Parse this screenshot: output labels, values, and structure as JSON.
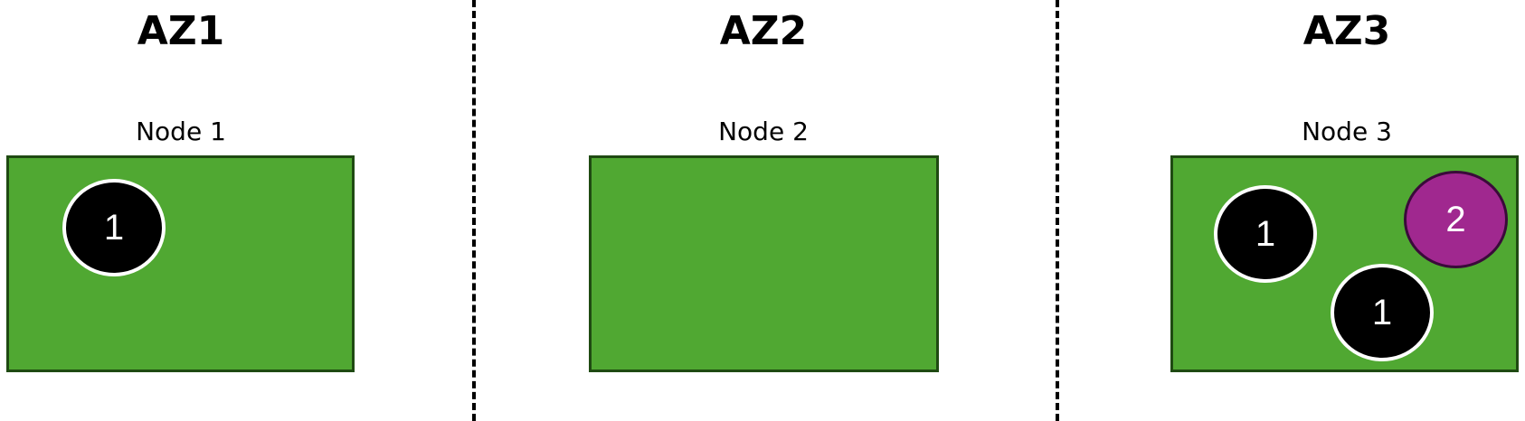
{
  "zones": [
    {
      "title": "AZ1",
      "node_label": "Node 1",
      "pods": [
        {
          "label": "1",
          "color": "#000000"
        }
      ]
    },
    {
      "title": "AZ2",
      "node_label": "Node 2",
      "pods": []
    },
    {
      "title": "AZ3",
      "node_label": "Node 3",
      "pods": [
        {
          "label": "1",
          "color": "#000000"
        },
        {
          "label": "2",
          "color": "#a0288f"
        },
        {
          "label": "1",
          "color": "#000000"
        }
      ]
    }
  ],
  "colors": {
    "node_fill": "#50a832",
    "node_border": "#1f4a12",
    "divider": "#000000"
  }
}
